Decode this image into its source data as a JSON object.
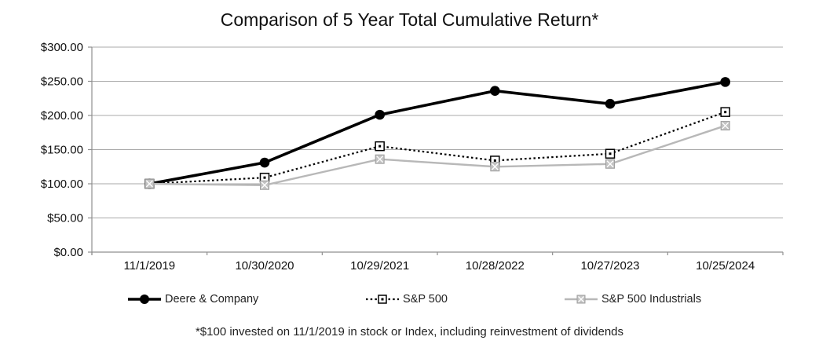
{
  "chart": {
    "title": "Comparison of 5 Year Total Cumulative Return*",
    "footnote": "*$100 invested on 11/1/2019 in stock or Index, including reinvestment of dividends"
  },
  "chart_data": {
    "type": "line",
    "title": "Comparison of 5 Year Total Cumulative Return*",
    "categories": [
      "11/1/2019",
      "10/30/2020",
      "10/29/2021",
      "10/28/2022",
      "10/27/2023",
      "10/25/2024"
    ],
    "series": [
      {
        "name": "Deere & Company",
        "values": [
          100,
          131,
          201,
          236,
          217,
          249
        ],
        "color": "#000000",
        "line_style": "solid",
        "line_width": 3.6,
        "marker": "filled-circle"
      },
      {
        "name": "S&P 500",
        "values": [
          100,
          109,
          155,
          134,
          144,
          205
        ],
        "color": "#000000",
        "line_style": "dotted",
        "line_width": 2.2,
        "marker": "dot-in-open-square"
      },
      {
        "name": "S&P 500 Industrials",
        "values": [
          100,
          98,
          136,
          125,
          129,
          185
        ],
        "color": "#b8b8b8",
        "line_style": "solid",
        "line_width": 2.4,
        "marker": "x-in-gray-square"
      }
    ],
    "ylabel": "",
    "xlabel": "",
    "ylim": [
      0,
      300
    ],
    "ytick_step": 50,
    "ytick_labels": [
      "$0.00",
      "$50.00",
      "$100.00",
      "$150.00",
      "$200.00",
      "$250.00",
      "$300.00"
    ],
    "grid": true,
    "gridline_color": "#a9a9a9",
    "axis_color": "#8f8f8f",
    "legend_position": "bottom",
    "footnote": "*$100 invested on 11/1/2019 in stock or Index, including reinvestment of dividends"
  }
}
